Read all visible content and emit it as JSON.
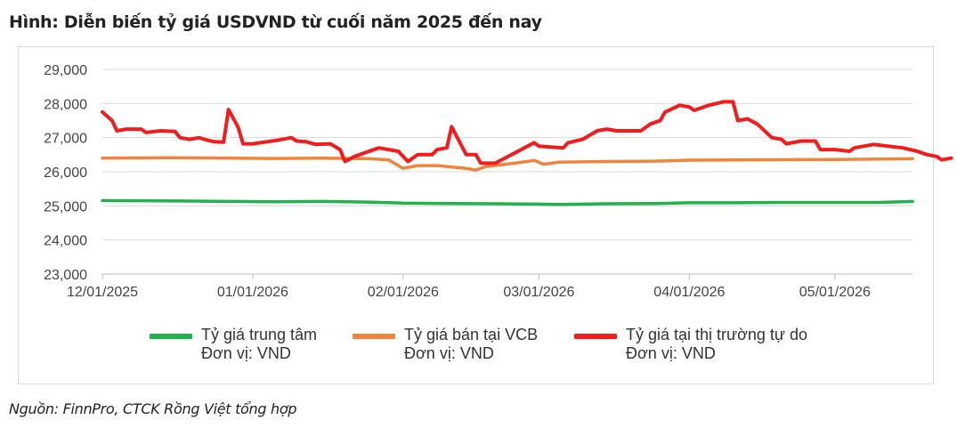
{
  "title": "Hình: Diễn biến tỷ giá USDVND từ cuối năm 2025 đến nay",
  "source": "Nguồn: FinnPro, CTCK Rồng Việt tổng hợp",
  "chart_data": {
    "type": "line",
    "ylim": [
      23000,
      29000
    ],
    "yticks": [
      23000,
      24000,
      25000,
      26000,
      27000,
      28000,
      29000
    ],
    "ytick_labels": [
      "23,000",
      "24,000",
      "25,000",
      "26,000",
      "27,000",
      "28,000",
      "29,000"
    ],
    "x_range": [
      "2025-12-01",
      "2026-05-17"
    ],
    "xticks": [
      "2025-12-01",
      "2026-01-01",
      "2026-02-01",
      "2026-03-01",
      "2026-04-01",
      "2026-05-01"
    ],
    "xtick_labels": [
      "12/01/2025",
      "01/01/2026",
      "02/01/2026",
      "03/01/2026",
      "04/01/2026",
      "05/01/2026"
    ],
    "grid": true,
    "legend_position": "bottom",
    "series": [
      {
        "name": "Tỷ giá trung tâm",
        "unit_label": "Đơn vị: VND",
        "color": "#22b14c",
        "points": [
          [
            "2025-12-01",
            25155
          ],
          [
            "2025-12-10",
            25150
          ],
          [
            "2025-12-20",
            25140
          ],
          [
            "2025-12-28",
            25130
          ],
          [
            "2026-01-05",
            25120
          ],
          [
            "2026-01-15",
            25130
          ],
          [
            "2026-01-25",
            25110
          ],
          [
            "2026-02-01",
            25080
          ],
          [
            "2026-02-10",
            25070
          ],
          [
            "2026-02-20",
            25060
          ],
          [
            "2026-03-01",
            25050
          ],
          [
            "2026-03-05",
            25040
          ],
          [
            "2026-03-15",
            25060
          ],
          [
            "2026-03-25",
            25070
          ],
          [
            "2026-04-01",
            25090
          ],
          [
            "2026-04-10",
            25090
          ],
          [
            "2026-04-20",
            25100
          ],
          [
            "2026-04-30",
            25100
          ],
          [
            "2026-05-10",
            25100
          ],
          [
            "2026-05-17",
            25130
          ]
        ]
      },
      {
        "name": "Tỷ giá bán tại VCB",
        "unit_label": "Đơn vị: VND",
        "color": "#f0843c",
        "points": [
          [
            "2025-12-01",
            26400
          ],
          [
            "2025-12-15",
            26410
          ],
          [
            "2025-12-28",
            26400
          ],
          [
            "2026-01-05",
            26390
          ],
          [
            "2026-01-15",
            26400
          ],
          [
            "2026-01-25",
            26380
          ],
          [
            "2026-01-29",
            26350
          ],
          [
            "2026-02-01",
            26100
          ],
          [
            "2026-02-04",
            26180
          ],
          [
            "2026-02-08",
            26180
          ],
          [
            "2026-02-14",
            26100
          ],
          [
            "2026-02-16",
            26050
          ],
          [
            "2026-02-18",
            26150
          ],
          [
            "2026-02-24",
            26250
          ],
          [
            "2026-02-28",
            26330
          ],
          [
            "2026-03-02",
            26220
          ],
          [
            "2026-03-05",
            26280
          ],
          [
            "2026-03-15",
            26300
          ],
          [
            "2026-03-25",
            26310
          ],
          [
            "2026-04-01",
            26340
          ],
          [
            "2026-04-15",
            26350
          ],
          [
            "2026-05-01",
            26360
          ],
          [
            "2026-05-17",
            26380
          ]
        ]
      },
      {
        "name": "Tỷ giá tại thị trường tự do",
        "unit_label": "Đơn vị: VND",
        "color": "#f21c1c",
        "points": [
          [
            "2025-12-01",
            27750
          ],
          [
            "2025-12-03",
            27500
          ],
          [
            "2025-12-04",
            27200
          ],
          [
            "2025-12-06",
            27250
          ],
          [
            "2025-12-09",
            27250
          ],
          [
            "2025-12-10",
            27150
          ],
          [
            "2025-12-13",
            27200
          ],
          [
            "2025-12-16",
            27180
          ],
          [
            "2025-12-17",
            27000
          ],
          [
            "2025-12-19",
            26950
          ],
          [
            "2025-12-21",
            27000
          ],
          [
            "2025-12-22",
            26950
          ],
          [
            "2025-12-24",
            26880
          ],
          [
            "2025-12-26",
            26870
          ],
          [
            "2025-12-27",
            27820
          ],
          [
            "2025-12-29",
            27300
          ],
          [
            "2025-12-30",
            26820
          ],
          [
            "2026-01-01",
            26820
          ],
          [
            "2026-01-06",
            26920
          ],
          [
            "2026-01-09",
            27000
          ],
          [
            "2026-01-10",
            26900
          ],
          [
            "2026-01-12",
            26880
          ],
          [
            "2026-01-14",
            26800
          ],
          [
            "2026-01-17",
            26820
          ],
          [
            "2026-01-19",
            26650
          ],
          [
            "2026-01-20",
            26300
          ],
          [
            "2026-01-22",
            26450
          ],
          [
            "2026-01-24",
            26550
          ],
          [
            "2026-01-27",
            26700
          ],
          [
            "2026-01-29",
            26650
          ],
          [
            "2026-01-31",
            26600
          ],
          [
            "2026-02-02",
            26300
          ],
          [
            "2026-02-04",
            26500
          ],
          [
            "2026-02-07",
            26500
          ],
          [
            "2026-02-08",
            26650
          ],
          [
            "2026-02-10",
            26700
          ],
          [
            "2026-02-11",
            27320
          ],
          [
            "2026-02-14",
            26500
          ],
          [
            "2026-02-16",
            26500
          ],
          [
            "2026-02-17",
            26250
          ],
          [
            "2026-02-20",
            26250
          ],
          [
            "2026-02-26",
            26700
          ],
          [
            "2026-02-28",
            26850
          ],
          [
            "2026-03-01",
            26750
          ],
          [
            "2026-03-06",
            26700
          ],
          [
            "2026-03-07",
            26850
          ],
          [
            "2026-03-10",
            26950
          ],
          [
            "2026-03-13",
            27200
          ],
          [
            "2026-03-15",
            27250
          ],
          [
            "2026-03-17",
            27200
          ],
          [
            "2026-03-22",
            27200
          ],
          [
            "2026-03-24",
            27400
          ],
          [
            "2026-03-26",
            27500
          ],
          [
            "2026-03-27",
            27750
          ],
          [
            "2026-03-30",
            27950
          ],
          [
            "2026-04-01",
            27900
          ],
          [
            "2026-04-02",
            27800
          ],
          [
            "2026-04-05",
            27950
          ],
          [
            "2026-04-08",
            28050
          ],
          [
            "2026-04-10",
            28050
          ],
          [
            "2026-04-11",
            27500
          ],
          [
            "2026-04-13",
            27550
          ],
          [
            "2026-04-15",
            27400
          ],
          [
            "2026-04-18",
            27000
          ],
          [
            "2026-04-20",
            26950
          ],
          [
            "2026-04-21",
            26820
          ],
          [
            "2026-04-24",
            26900
          ],
          [
            "2026-04-27",
            26900
          ],
          [
            "2026-04-28",
            26650
          ],
          [
            "2026-05-01",
            26650
          ],
          [
            "2026-05-04",
            26600
          ],
          [
            "2026-05-05",
            26700
          ],
          [
            "2026-05-09",
            26800
          ],
          [
            "2026-05-12",
            26750
          ],
          [
            "2026-05-15",
            26700
          ],
          [
            "2026-05-18",
            26600
          ],
          [
            "2026-05-20",
            26500
          ],
          [
            "2026-05-22",
            26450
          ],
          [
            "2026-05-23",
            26350
          ],
          [
            "2026-05-25",
            26400
          ]
        ]
      }
    ]
  }
}
